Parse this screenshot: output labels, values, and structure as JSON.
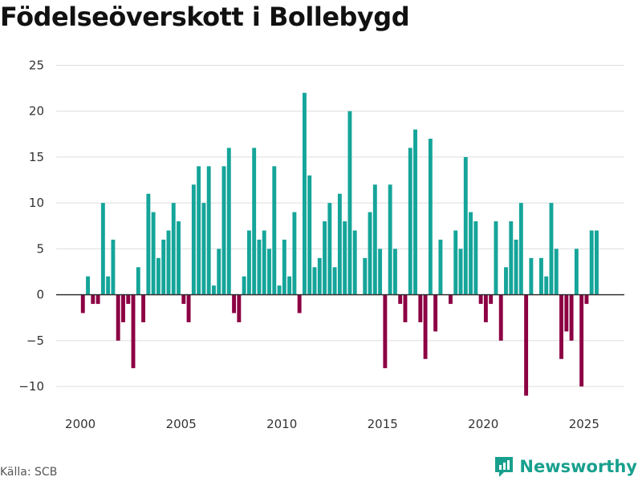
{
  "title": "Födelseöverskott i Bollebygd",
  "source": "Källa: SCB",
  "brand": "Newsworthy",
  "colors": {
    "positive": "#15a59a",
    "negative": "#8c0043",
    "grid": "#dddddd",
    "zero": "#333333",
    "brand": "#18a08e"
  },
  "chart_data": {
    "type": "bar",
    "title": "Födelseöverskott i Bollebygd",
    "xlabel": "",
    "ylabel": "",
    "ylim": [
      -12,
      26
    ],
    "xlim": [
      1998.8,
      2027
    ],
    "y_ticks": [
      25,
      20,
      15,
      10,
      5,
      0,
      -5,
      -10
    ],
    "y_tick_labels": [
      "25",
      "20",
      "15",
      "10",
      "5",
      "0",
      "−5",
      "−10"
    ],
    "x_ticks": [
      2000,
      2005,
      2010,
      2015,
      2020,
      2025
    ],
    "x_tick_labels": [
      "2000",
      "2005",
      "2010",
      "2015",
      "2020",
      "2025"
    ],
    "start_year": 2000,
    "periods_per_year": 4,
    "values": [
      -2,
      2,
      -1,
      -1,
      10,
      2,
      6,
      -5,
      -3,
      -1,
      -8,
      3,
      -3,
      11,
      9,
      4,
      6,
      7,
      10,
      8,
      -1,
      -3,
      12,
      14,
      10,
      14,
      1,
      5,
      14,
      16,
      -2,
      -3,
      2,
      7,
      16,
      6,
      7,
      5,
      14,
      1,
      6,
      2,
      9,
      -2,
      22,
      13,
      3,
      4,
      8,
      10,
      3,
      11,
      8,
      20,
      7,
      0,
      4,
      9,
      12,
      5,
      -8,
      12,
      5,
      -1,
      -3,
      16,
      18,
      -3,
      -7,
      17,
      -4,
      6,
      0,
      -1,
      7,
      5,
      15,
      9,
      8,
      -1,
      -3,
      -1,
      8,
      -5,
      3,
      8,
      6,
      10,
      -11,
      4,
      0,
      4,
      2,
      10,
      5,
      -7,
      -4,
      -5,
      5,
      -10,
      -1,
      7,
      7
    ]
  }
}
